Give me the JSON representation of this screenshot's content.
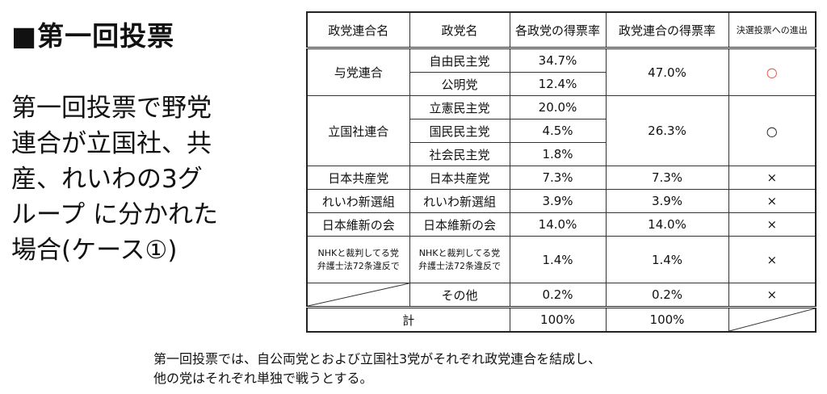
{
  "title": "■第一回投票",
  "description_lines": [
    "第一回投票で野党",
    "連合が立国社、共",
    "産、れいわの3グ",
    "ループ に分かれた",
    "場合(ケース①)"
  ],
  "table": {
    "headers": [
      "政党連合名",
      "政党名",
      "各政党の得票率",
      "政党連合の得票率",
      "決選投票への進出"
    ],
    "coalitions": {
      "ruling": {
        "name": "与党連合",
        "rate": "47.0%",
        "advance": "○"
      },
      "rikkokusha": {
        "name": "立国社連合",
        "rate": "26.3%",
        "advance": "○"
      }
    },
    "parties": [
      {
        "party": "自由民主党",
        "rate": "34.7%"
      },
      {
        "party": "公明党",
        "rate": "12.4%"
      },
      {
        "party": "立憲民主党",
        "rate": "20.0%"
      },
      {
        "party": "国民民主党",
        "rate": "4.5%"
      },
      {
        "party": "社会民主党",
        "rate": "1.8%"
      },
      {
        "coalition": "日本共産党",
        "party": "日本共産党",
        "rate": "7.3%",
        "coalition_rate": "7.3%",
        "advance": "×"
      },
      {
        "coalition": "れいわ新選組",
        "party": "れいわ新選組",
        "rate": "3.9%",
        "coalition_rate": "3.9%",
        "advance": "×"
      },
      {
        "coalition": "日本維新の会",
        "party": "日本維新の会",
        "rate": "14.0%",
        "coalition_rate": "14.0%",
        "advance": "×"
      },
      {
        "coalition_line1": "NHKと裁判してる党",
        "coalition_line2": "弁護士法72条違反で",
        "party_line1": "NHKと裁判してる党",
        "party_line2": "弁護士法72条違反で",
        "rate": "1.4%",
        "coalition_rate": "1.4%",
        "advance": "×"
      },
      {
        "party": "その他",
        "rate": "0.2%",
        "coalition_rate": "0.2%",
        "advance": "×"
      }
    ],
    "total": {
      "label": "計",
      "rate": "100%",
      "coalition_rate": "100%"
    }
  },
  "footer_lines": [
    "第一回投票では、自公両党とおよび立国社3党がそれぞれ政党連合を結成し、",
    "他の党はそれぞれ単独で戦うとする。"
  ],
  "colors": {
    "accent_red": "#e24a3a"
  }
}
